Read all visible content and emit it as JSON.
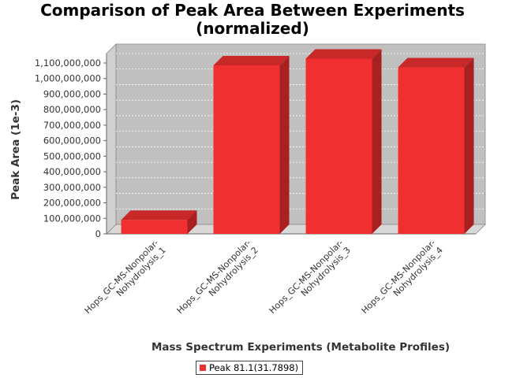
{
  "chart_data": {
    "type": "bar",
    "title": [
      "Comparison of Peak Area Between Experiments",
      "(normalized)"
    ],
    "xlabel": "Mass Spectrum Experiments (Metabolite Profiles)",
    "ylabel": "Peak Area (1e-3)",
    "categories": [
      [
        "Hops_GC-MS-Nonpolar-",
        "Nohydrolysis_1"
      ],
      [
        "Hops_GC-MS-Nonpolar-",
        "Nohydrolysis_2"
      ],
      [
        "Hops_GC-MS-Nonpolar-",
        "Nohydrolysis_3"
      ],
      [
        "Hops_GC-MS-Nonpolar-",
        "Nohydrolysis_4"
      ]
    ],
    "series": [
      {
        "name": "Peak 81.1(31.7898)",
        "color": "#f03030",
        "values": [
          90000000,
          1085000000,
          1128000000,
          1072000000
        ]
      }
    ],
    "ylim": [
      0,
      1100000000
    ],
    "ytick_step": 100000000,
    "yticks_labels": [
      "0",
      "100,000,000",
      "200,000,000",
      "300,000,000",
      "400,000,000",
      "500,000,000",
      "600,000,000",
      "700,000,000",
      "800,000,000",
      "900,000,000",
      "1,000,000,000",
      "1,100,000,000"
    ],
    "grid": true,
    "legend_position": "bottom",
    "plot_background": "#c0c0c0"
  }
}
